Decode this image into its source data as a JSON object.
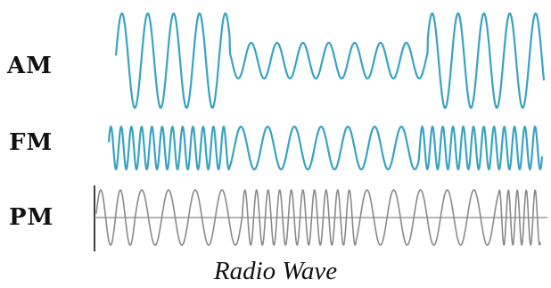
{
  "labels": {
    "am": "AM",
    "fm": "FM",
    "pm": "PM"
  },
  "caption": "Radio Wave",
  "colors": {
    "am_wave": "#3aa3c2",
    "fm_wave": "#3aa3c2",
    "pm_wave": "#8a8a8a",
    "axis": "#000000",
    "text": "#111111",
    "background": "#ffffff"
  }
}
